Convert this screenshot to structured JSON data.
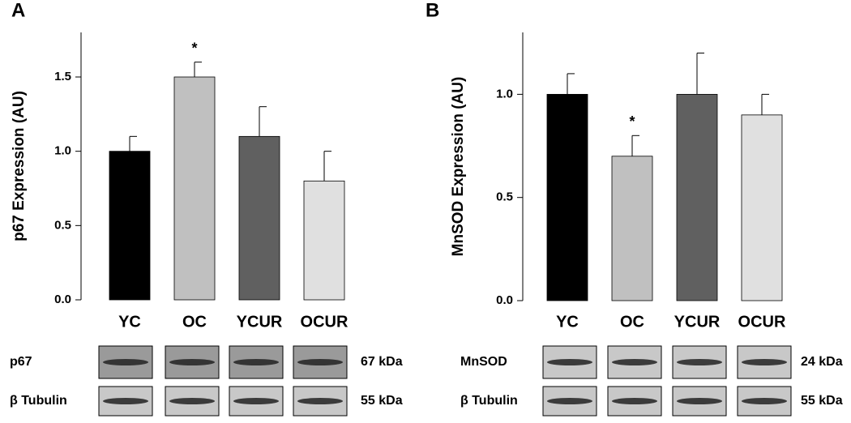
{
  "chart_data": [
    {
      "type": "bar",
      "panel": "A",
      "ylabel": "p67 Expression (AU)",
      "categories": [
        "YC",
        "OC",
        "YCUR",
        "OCUR"
      ],
      "values": [
        1.0,
        1.5,
        1.1,
        0.8
      ],
      "errors": [
        0.1,
        0.1,
        0.2,
        0.2
      ],
      "markers": [
        null,
        "*",
        null,
        null
      ],
      "colors": [
        "#000000",
        "#c0c0c0",
        "#606060",
        "#e0e0e0"
      ],
      "ylim": [
        0,
        1.8
      ],
      "yticks": [
        {
          "value": 0,
          "label": "0.0"
        },
        {
          "value": 0.5,
          "label": "0.5"
        },
        {
          "value": 1,
          "label": "1.0"
        },
        {
          "value": 1.5,
          "label": "1.5"
        }
      ],
      "blots": [
        {
          "label": "p67",
          "size": "67 kDa"
        },
        {
          "label": "β Tubulin",
          "size": "55 kDa"
        }
      ]
    },
    {
      "type": "bar",
      "panel": "B",
      "ylabel": "MnSOD Expression (AU)",
      "categories": [
        "YC",
        "OC",
        "YCUR",
        "OCUR"
      ],
      "values": [
        1.0,
        0.7,
        1.0,
        0.9
      ],
      "errors": [
        0.1,
        0.1,
        0.2,
        0.1
      ],
      "markers": [
        null,
        "*",
        null,
        null
      ],
      "colors": [
        "#000000",
        "#c0c0c0",
        "#606060",
        "#e0e0e0"
      ],
      "ylim": [
        0,
        1.3
      ],
      "yticks": [
        {
          "value": 0,
          "label": "0.0"
        },
        {
          "value": 0.5,
          "label": "0.5"
        },
        {
          "value": 1,
          "label": "1.0"
        }
      ],
      "blots": [
        {
          "label": "MnSOD",
          "size": "24 kDa"
        },
        {
          "label": "β Tubulin",
          "size": "55 kDa"
        }
      ]
    }
  ]
}
